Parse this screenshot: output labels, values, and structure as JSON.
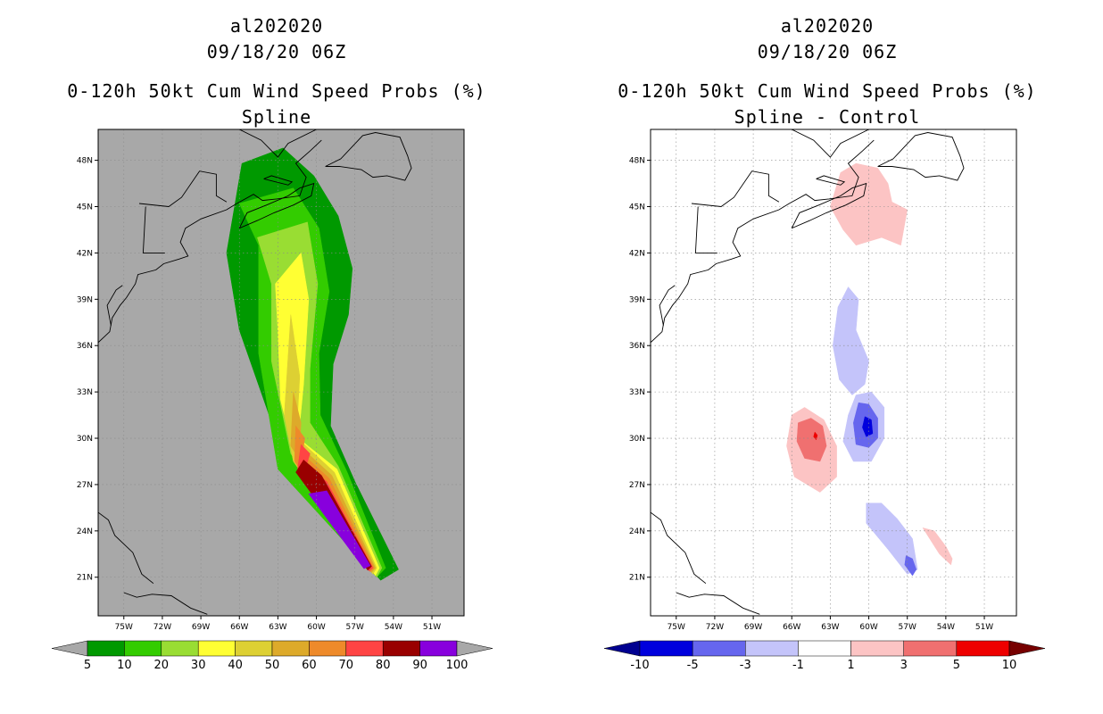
{
  "panels": [
    {
      "storm": "al202020",
      "time": "09/18/20 06Z",
      "product": "0-120h 50kt Cum Wind Speed Probs (%)",
      "subtitle": "Spline"
    },
    {
      "storm": "al202020",
      "time": "09/18/20 06Z",
      "product": "0-120h 50kt Cum Wind Speed Probs (%)",
      "subtitle": "Spline - Control"
    }
  ],
  "chart_data": [
    {
      "type": "heatmap",
      "title": "0-120h 50kt Cum Wind Speed Probs (%)",
      "subtitle": "Spline",
      "xlabel": "",
      "ylabel": "",
      "xlim": [
        -77,
        -48.5
      ],
      "ylim": [
        18.5,
        50
      ],
      "x_ticks": [
        "75W",
        "72W",
        "69W",
        "66W",
        "63W",
        "60W",
        "57W",
        "54W",
        "51W"
      ],
      "x_tick_values": [
        -75,
        -72,
        -69,
        -66,
        -63,
        -60,
        -57,
        -54,
        -51
      ],
      "y_ticks": [
        "48N",
        "45N",
        "42N",
        "39N",
        "36N",
        "33N",
        "30N",
        "27N",
        "24N",
        "21N"
      ],
      "y_tick_values": [
        48,
        45,
        42,
        39,
        36,
        33,
        30,
        27,
        24,
        21
      ],
      "background_color": "#a8a8a8",
      "colorbar": {
        "labels": [
          "5",
          "10",
          "20",
          "30",
          "40",
          "50",
          "60",
          "70",
          "80",
          "90",
          "100"
        ],
        "colors": [
          "#009900",
          "#33cc00",
          "#99dd33",
          "#ffff33",
          "#ddd033",
          "#ddaa2a",
          "#ee8a2a",
          "#ff4444",
          "#990000",
          "#8800dd"
        ],
        "end_colors": [
          "#a8a8a8",
          "#a8a8a8"
        ]
      },
      "levels": [
        {
          "label": "5",
          "color": "#009900",
          "lon": [
            -65.8,
            -62.6,
            -60.2,
            -58.3,
            -57.2,
            -57.5,
            -58.7,
            -58.9,
            -57.0,
            -53.6,
            -55.0,
            -62.0,
            -66.0,
            -67.0,
            -65.8
          ],
          "lat": [
            47.8,
            48.8,
            47.0,
            44.4,
            41.0,
            38.0,
            34.8,
            30.8,
            27.2,
            21.5,
            20.8,
            27.5,
            37.0,
            42.0,
            47.8
          ]
        },
        {
          "label": "10",
          "color": "#33cc00",
          "lon": [
            -66.0,
            -61.8,
            -59.8,
            -59.0,
            -59.8,
            -59.7,
            -57.6,
            -54.6,
            -55.3,
            -63.0,
            -64.5,
            -64.5,
            -66.0
          ],
          "lat": [
            45.2,
            46.2,
            43.6,
            39.5,
            35.5,
            31.5,
            27.8,
            21.6,
            21.0,
            28.0,
            35.5,
            42.5,
            45.2
          ]
        },
        {
          "label": "20",
          "color": "#99dd33",
          "lon": [
            -64.6,
            -60.7,
            -59.9,
            -60.5,
            -60.5,
            -58.3,
            -54.9,
            -55.3,
            -62.0,
            -63.5,
            -63.5,
            -64.6
          ],
          "lat": [
            43.0,
            44.0,
            40.0,
            34.5,
            31.0,
            28.2,
            21.6,
            21.0,
            29.0,
            35.0,
            40.0,
            43.0
          ]
        },
        {
          "label": "30",
          "color": "#ffff33",
          "lon": [
            -63.2,
            -61.2,
            -60.6,
            -61.0,
            -61.4,
            -58.4,
            -55.1,
            -55.4,
            -61.6,
            -62.8,
            -63.0,
            -63.2
          ],
          "lat": [
            40.0,
            42.0,
            39.0,
            33.5,
            30.0,
            28.0,
            21.6,
            21.1,
            28.5,
            32.5,
            37.0,
            40.0
          ]
        },
        {
          "label": "40",
          "color": "#ddd033",
          "lon": [
            -62.0,
            -61.3,
            -61.5,
            -61.2,
            -58.6,
            -55.3,
            -55.6,
            -61.8,
            -62.5,
            -62.0
          ],
          "lat": [
            38.0,
            34.0,
            31.0,
            29.8,
            27.8,
            21.6,
            21.2,
            28.5,
            31.5,
            38.0
          ]
        },
        {
          "label": "50",
          "color": "#ddaa2a",
          "lon": [
            -61.8,
            -61.2,
            -61.3,
            -58.8,
            -55.4,
            -55.7,
            -62.0,
            -61.8
          ],
          "lat": [
            33.0,
            31.0,
            29.5,
            27.6,
            21.6,
            21.3,
            29.5,
            33.0
          ]
        },
        {
          "label": "60",
          "color": "#ee8a2a",
          "lon": [
            -61.6,
            -60.9,
            -61.1,
            -59.0,
            -55.5,
            -55.8,
            -61.7,
            -61.6
          ],
          "lat": [
            30.8,
            30.0,
            29.0,
            27.4,
            21.6,
            21.35,
            28.5,
            30.8
          ]
        },
        {
          "label": "70",
          "color": "#ff4444",
          "lon": [
            -61.2,
            -60.5,
            -60.8,
            -59.2,
            -55.6,
            -55.9,
            -61.5,
            -61.2
          ],
          "lat": [
            29.6,
            29.0,
            28.2,
            27.2,
            21.6,
            21.4,
            27.8,
            29.6
          ]
        },
        {
          "label": "80",
          "color": "#990000",
          "lon": [
            -61.0,
            -59.6,
            -55.7,
            -56.0,
            -61.6,
            -61.0
          ],
          "lat": [
            28.6,
            27.6,
            21.7,
            21.45,
            27.8,
            28.6
          ]
        },
        {
          "label": "90",
          "color": "#8800dd",
          "lon": [
            -60.6,
            -59.2,
            -55.8,
            -56.3,
            -60.6
          ],
          "lat": [
            26.4,
            26.6,
            21.75,
            21.55,
            26.4
          ]
        }
      ]
    },
    {
      "type": "heatmap",
      "title": "0-120h 50kt Cum Wind Speed Probs (%)",
      "subtitle": "Spline - Control",
      "xlabel": "",
      "ylabel": "",
      "xlim": [
        -77,
        -48.5
      ],
      "ylim": [
        18.5,
        50
      ],
      "x_ticks": [
        "75W",
        "72W",
        "69W",
        "66W",
        "63W",
        "60W",
        "57W",
        "54W",
        "51W"
      ],
      "x_tick_values": [
        -75,
        -72,
        -69,
        -66,
        -63,
        -60,
        -57,
        -54,
        -51
      ],
      "y_ticks": [
        "48N",
        "45N",
        "42N",
        "39N",
        "36N",
        "33N",
        "30N",
        "27N",
        "24N",
        "21N"
      ],
      "y_tick_values": [
        48,
        45,
        42,
        39,
        36,
        33,
        30,
        27,
        24,
        21
      ],
      "background_color": "#ffffff",
      "colorbar": {
        "labels": [
          "-10",
          "-5",
          "-3",
          "-1",
          "1",
          "3",
          "5",
          "10"
        ],
        "colors": [
          "#0000dd",
          "#6666ee",
          "#c4c4fa",
          "#ffffff",
          "#fcc4c4",
          "#f07070",
          "#ee0000"
        ],
        "end_colors": [
          "#000090",
          "#770000"
        ]
      },
      "levels": [
        {
          "label": "1",
          "color": "#fcc4c4",
          "lon": [
            -63.0,
            -62.2,
            -61.0,
            -59.3,
            -58.5,
            -58.2,
            -57.0,
            -57.5,
            -59.0,
            -61.0,
            -62.0,
            -63.0
          ],
          "lat": [
            45.0,
            47.2,
            47.8,
            47.5,
            46.5,
            45.3,
            44.8,
            42.5,
            43.0,
            42.5,
            43.5,
            45.0
          ]
        },
        {
          "label": "1",
          "color": "#fcc4c4",
          "lon": [
            -66.0,
            -65.0,
            -63.5,
            -62.5,
            -62.5,
            -63.8,
            -65.8,
            -66.4,
            -66.0
          ],
          "lat": [
            31.5,
            32.0,
            31.2,
            29.5,
            27.5,
            26.5,
            27.5,
            29.5,
            31.5
          ]
        },
        {
          "label": "1",
          "color": "#fcc4c4",
          "lon": [
            -55.8,
            -54.9,
            -54.0,
            -53.5,
            -53.6,
            -54.5,
            -55.8
          ],
          "lat": [
            24.2,
            24.0,
            23.0,
            22.2,
            21.8,
            22.5,
            24.2
          ]
        },
        {
          "label": "3",
          "color": "#f07070",
          "lon": [
            -65.5,
            -64.5,
            -63.6,
            -63.3,
            -63.8,
            -65.0,
            -65.6,
            -65.5
          ],
          "lat": [
            31.0,
            31.3,
            30.8,
            29.5,
            28.5,
            28.7,
            29.8,
            31.0
          ]
        },
        {
          "label": "5",
          "color": "#ee0000",
          "lon": [
            -64.2,
            -64.0,
            -64.1,
            -64.3,
            -64.2
          ],
          "lat": [
            30.4,
            30.2,
            29.9,
            30.1,
            30.4
          ]
        },
        {
          "label": "-1",
          "color": "#c4c4fa",
          "lon": [
            -62.4,
            -61.6,
            -60.8,
            -61.0,
            -60.0,
            -60.3,
            -61.3,
            -62.3,
            -62.8,
            -62.4
          ],
          "lat": [
            38.5,
            39.8,
            39.0,
            37.0,
            35.0,
            33.5,
            32.8,
            33.8,
            36.0,
            38.5
          ]
        },
        {
          "label": "-1",
          "color": "#c4c4fa",
          "lon": [
            -61.0,
            -59.8,
            -58.8,
            -58.8,
            -59.8,
            -61.2,
            -62.0,
            -61.6,
            -61.0
          ],
          "lat": [
            32.8,
            33.0,
            32.0,
            30.0,
            28.5,
            28.5,
            29.8,
            31.5,
            32.8
          ]
        },
        {
          "label": "-1",
          "color": "#c4c4fa",
          "lon": [
            -60.2,
            -59.0,
            -57.8,
            -56.6,
            -56.2,
            -57.0,
            -58.5,
            -60.2,
            -60.2
          ],
          "lat": [
            25.8,
            25.8,
            24.8,
            23.5,
            21.5,
            21.2,
            22.8,
            24.5,
            25.8
          ]
        },
        {
          "label": "-3",
          "color": "#6666ee",
          "lon": [
            -60.8,
            -60.0,
            -59.3,
            -59.3,
            -60.0,
            -61.0,
            -61.2,
            -60.8
          ],
          "lat": [
            32.3,
            32.2,
            31.3,
            30.0,
            29.4,
            29.6,
            31.0,
            32.3
          ]
        },
        {
          "label": "-3",
          "color": "#6666ee",
          "lon": [
            -57.1,
            -56.6,
            -56.3,
            -56.6,
            -57.2,
            -57.1
          ],
          "lat": [
            22.4,
            22.2,
            21.5,
            21.1,
            21.8,
            22.4
          ]
        },
        {
          "label": "-5",
          "color": "#0000dd",
          "lon": [
            -60.3,
            -59.8,
            -59.7,
            -60.2,
            -60.5,
            -60.3
          ],
          "lat": [
            31.4,
            31.2,
            30.3,
            30.1,
            30.7,
            31.4
          ]
        }
      ]
    }
  ]
}
